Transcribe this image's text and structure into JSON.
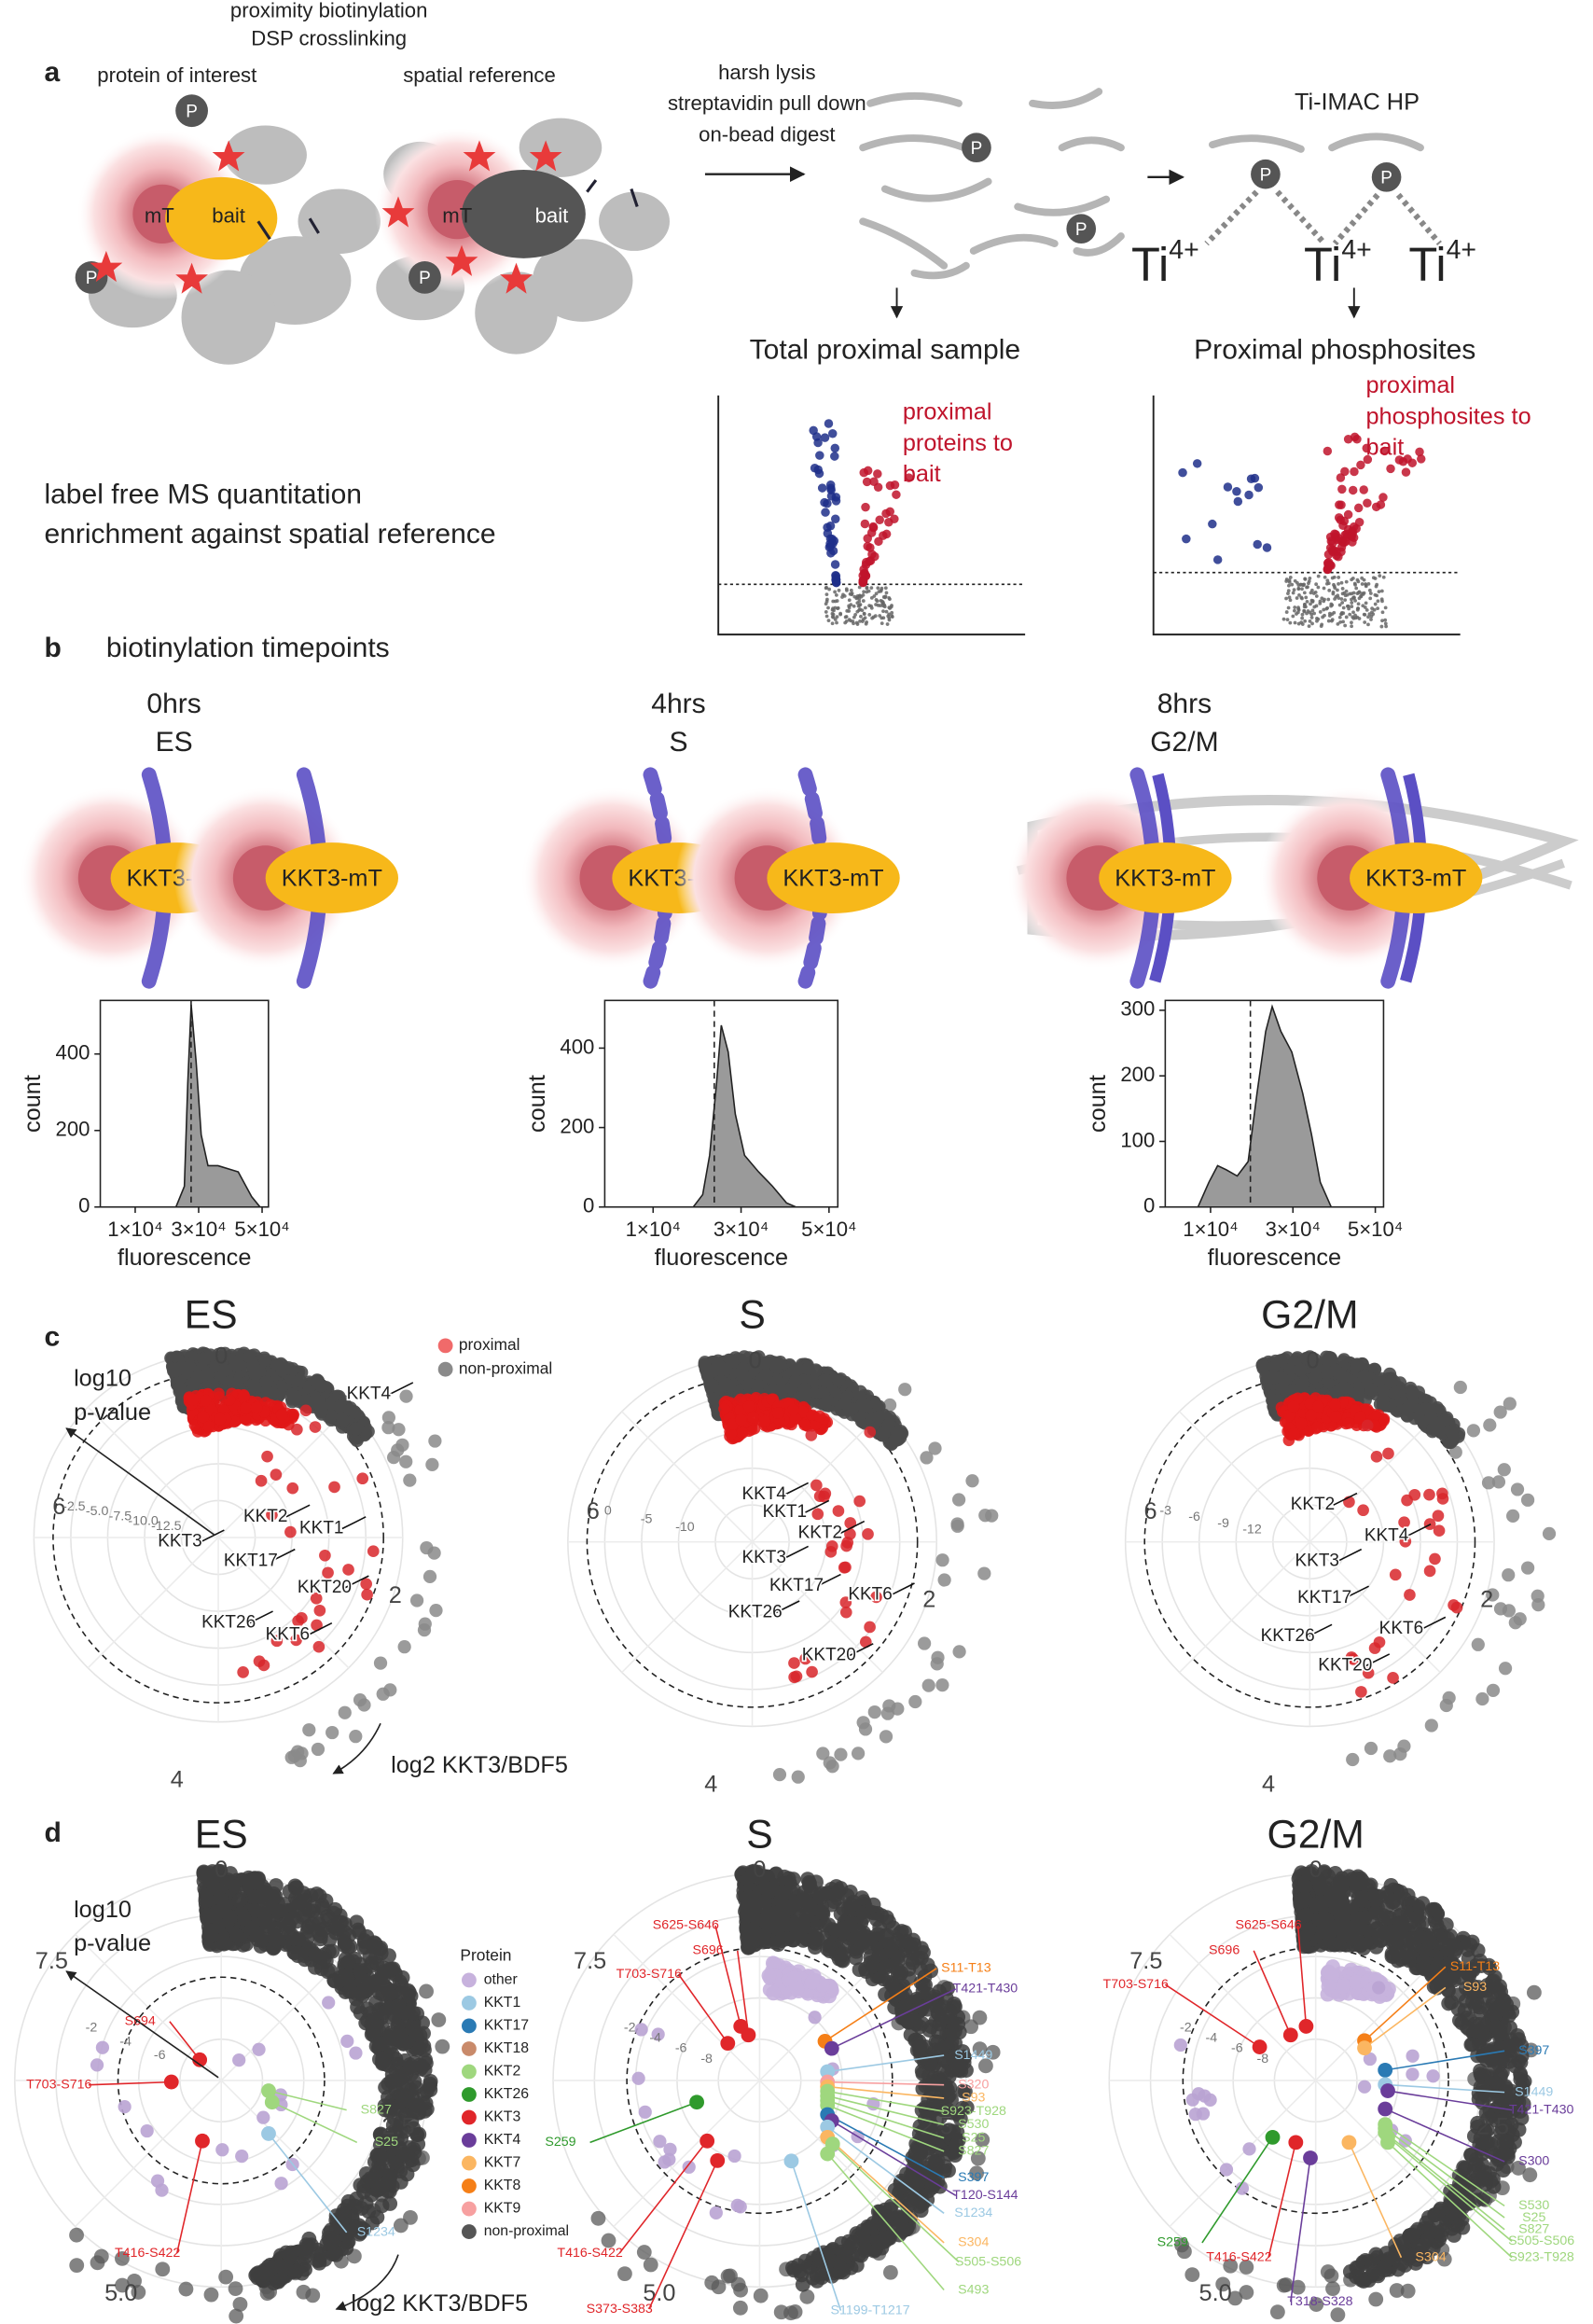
{
  "a": {
    "letter": "a",
    "header": [
      "proximity biotinylation",
      "DSP crosslinking"
    ],
    "poi": "protein of interest",
    "ref": "spatial reference",
    "mT": "mT",
    "bait": "bait",
    "P": "P",
    "lysis": [
      "harsh lysis",
      "streptavidin pull down",
      "on-bead digest"
    ],
    "timac": "Ti-IMAC HP",
    "ti": "Ti",
    "charge": "4+",
    "total": "Total proximal sample",
    "phospho": "Proximal phosphosites",
    "ms": [
      "label free MS quantitation",
      "enrichment against spatial reference"
    ],
    "prox_proteins": [
      "proximal",
      "proteins to",
      "bait"
    ],
    "prox_phospho": [
      "proximal",
      "phosphosites to",
      "bait"
    ]
  },
  "b": {
    "letter": "b",
    "title": "biotinylation timepoints",
    "construct": "KKT3-mT",
    "ylabel": "count",
    "xlabel": "fluorescence",
    "xlim": [
      -1000,
      52000
    ],
    "xticks": [
      {
        "value": 10000,
        "label": "1×10⁴"
      },
      {
        "value": 30000,
        "label": "3×10⁴"
      },
      {
        "value": 50000,
        "label": "5×10⁴"
      }
    ],
    "timepoints": [
      {
        "time": "0hrs",
        "phase": "ES",
        "ylim": [
          0,
          540
        ],
        "yticks": [
          0,
          200,
          400
        ]
      },
      {
        "time": "4hrs",
        "phase": "S",
        "ylim": [
          0,
          520
        ],
        "yticks": [
          0,
          200,
          400
        ]
      },
      {
        "time": "8hrs",
        "phase": "G2/M",
        "ylim": [
          0,
          315
        ],
        "yticks": [
          0,
          100,
          200,
          300
        ]
      }
    ]
  },
  "c": {
    "letter": "c",
    "titles": [
      "ES",
      "S",
      "G2/M"
    ],
    "angle_ticks": [
      "0",
      "2",
      "4",
      "6"
    ],
    "legend": [
      {
        "name": "proximal",
        "color": "#f06a6a"
      },
      {
        "name": "non-proximal",
        "color": "#8a8a8a"
      }
    ],
    "rlabel": [
      "log10",
      "p-value"
    ],
    "alabel": "log2 KKT3/BDF5",
    "rticks": [
      [
        "-2.5",
        "-5.0",
        "-7.5",
        "-10.0",
        "-12.5"
      ],
      [
        "0",
        "-5",
        "-10"
      ],
      [
        "-3",
        "-6",
        "-9",
        "-12"
      ]
    ],
    "labels": [
      [
        "KKT4",
        "KKT2",
        "KKT1",
        "KKT3",
        "KKT17",
        "KKT20",
        "KKT26",
        "KKT6"
      ],
      [
        "KKT4",
        "KKT1",
        "KKT2",
        "KKT3",
        "KKT17",
        "KKT6",
        "KKT26",
        "KKT20"
      ],
      [
        "KKT2",
        "KKT4",
        "KKT3",
        "KKT17",
        "KKT26",
        "KKT6",
        "KKT20"
      ]
    ]
  },
  "d": {
    "letter": "d",
    "titles": [
      "ES",
      "S",
      "G2/M"
    ],
    "angle_ticks": [
      "0",
      "2.5",
      "5.0",
      "7.5"
    ],
    "rlabel": [
      "log10",
      "p-value"
    ],
    "alabel": "log2 KKT3/BDF5",
    "legend_title": "Protein",
    "proteins": [
      {
        "name": "other",
        "color": "#c7b2dd"
      },
      {
        "name": "KKT1",
        "color": "#9cc9e3"
      },
      {
        "name": "KKT17",
        "color": "#2a7ab4"
      },
      {
        "name": "KKT18",
        "color": "#c98a6a"
      },
      {
        "name": "KKT2",
        "color": "#9fd77e"
      },
      {
        "name": "KKT26",
        "color": "#2f9a2c"
      },
      {
        "name": "KKT3",
        "color": "#e0262a"
      },
      {
        "name": "KKT4",
        "color": "#6a3d9a"
      },
      {
        "name": "KKT7",
        "color": "#fbb661"
      },
      {
        "name": "KKT8",
        "color": "#f57f17"
      },
      {
        "name": "KKT9",
        "color": "#f7a0a0"
      },
      {
        "name": "non-proximal",
        "color": "#555555"
      }
    ],
    "rticks": [
      [
        "-2",
        "-4",
        "-6"
      ],
      [
        "-2",
        "-4",
        "-6",
        "-8"
      ],
      [
        "-2",
        "-4",
        "-6",
        "-8"
      ]
    ],
    "sites": [
      [
        {
          "label": "S694",
          "protein": "KKT3"
        },
        {
          "label": "T703-S716",
          "protein": "KKT3"
        },
        {
          "label": "T416-S422",
          "protein": "KKT3"
        },
        {
          "label": "S827",
          "protein": "KKT2"
        },
        {
          "label": "S25",
          "protein": "KKT2"
        },
        {
          "label": "S1234",
          "protein": "KKT1"
        }
      ],
      [
        {
          "label": "S625-S646",
          "protein": "KKT3"
        },
        {
          "label": "S696",
          "protein": "KKT3"
        },
        {
          "label": "T703-S716",
          "protein": "KKT3"
        },
        {
          "label": "S259",
          "protein": "KKT26"
        },
        {
          "label": "T416-S422",
          "protein": "KKT3"
        },
        {
          "label": "S373-S383",
          "protein": "KKT3"
        },
        {
          "label": "S11-T13",
          "protein": "KKT8"
        },
        {
          "label": "T421-T430",
          "protein": "KKT4"
        },
        {
          "label": "S1449",
          "protein": "KKT1"
        },
        {
          "label": "S320",
          "protein": "KKT9"
        },
        {
          "label": "S93",
          "protein": "KKT7"
        },
        {
          "label": "S923-T928",
          "protein": "KKT2"
        },
        {
          "label": "S530",
          "protein": "KKT2"
        },
        {
          "label": "S25",
          "protein": "KKT2"
        },
        {
          "label": "S827",
          "protein": "KKT2"
        },
        {
          "label": "S397",
          "protein": "KKT17"
        },
        {
          "label": "T120-S144",
          "protein": "KKT4"
        },
        {
          "label": "S1234",
          "protein": "KKT1"
        },
        {
          "label": "S304",
          "protein": "KKT7"
        },
        {
          "label": "S505-S506",
          "protein": "KKT2"
        },
        {
          "label": "S493",
          "protein": "KKT2"
        },
        {
          "label": "S1199-T1217",
          "protein": "KKT1"
        }
      ],
      [
        {
          "label": "S625-S646",
          "protein": "KKT3"
        },
        {
          "label": "S696",
          "protein": "KKT3"
        },
        {
          "label": "T703-S716",
          "protein": "KKT3"
        },
        {
          "label": "S11-T13",
          "protein": "KKT8"
        },
        {
          "label": "S93",
          "protein": "KKT7"
        },
        {
          "label": "S397",
          "protein": "KKT17"
        },
        {
          "label": "S1449",
          "protein": "KKT1"
        },
        {
          "label": "T421-T430",
          "protein": "KKT4"
        },
        {
          "label": "S300",
          "protein": "KKT4"
        },
        {
          "label": "S530",
          "protein": "KKT2"
        },
        {
          "label": "S25",
          "protein": "KKT2"
        },
        {
          "label": "S827",
          "protein": "KKT2"
        },
        {
          "label": "S505-S506",
          "protein": "KKT2"
        },
        {
          "label": "S923-T928",
          "protein": "KKT2"
        },
        {
          "label": "S304",
          "protein": "KKT7"
        },
        {
          "label": "S259",
          "protein": "KKT26"
        },
        {
          "label": "T416-S422",
          "protein": "KKT3"
        },
        {
          "label": "T318-S328",
          "protein": "KKT4"
        }
      ]
    ]
  }
}
